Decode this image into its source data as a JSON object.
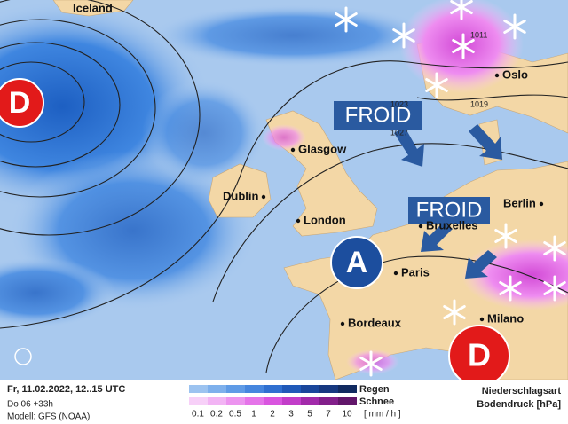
{
  "map": {
    "cities": [
      "Iceland",
      "Oslo",
      "Glasgow",
      "Dublin",
      "London",
      "Berlin",
      "Bruxelles",
      "Paris",
      "Bordeaux",
      "Milano"
    ],
    "isobar_labels": [
      "1023",
      "1027",
      "1011",
      "1019"
    ],
    "callouts": [
      "FROID",
      "FROID"
    ],
    "high": "A",
    "lows": [
      "D",
      "D"
    ]
  },
  "footer": {
    "time": "Fr, 11.02.2022, 12..15 UTC",
    "run": "Do 06 +33h",
    "model": "Modell: GFS (NOAA)",
    "rain": "Regen",
    "snow": "Schnee",
    "unit": "[ mm / h ]",
    "scale": [
      0.1,
      0.2,
      0.5,
      1,
      2,
      3,
      5,
      7,
      10
    ],
    "type_title": "Niederschlagsart",
    "pressure_title": "Bodendruck [hPa]"
  }
}
